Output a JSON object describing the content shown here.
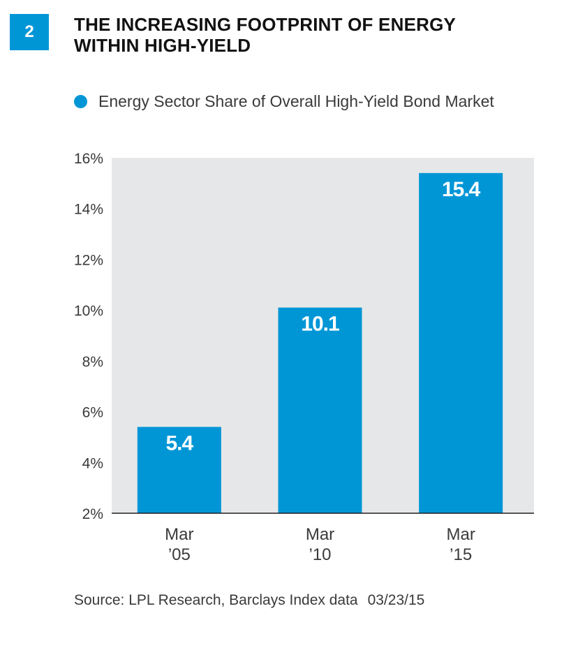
{
  "figure": {
    "number": "2",
    "title_lines": [
      "THE INCREASING FOOTPRINT OF ENERGY",
      "WITHIN HIGH-YIELD"
    ]
  },
  "source": {
    "text": "Source: LPL Research, Barclays Index data",
    "date": "03/23/15"
  },
  "colors": {
    "bar": "#0096d6",
    "plot_bg": "#e6e7e8",
    "axis": "#231f20"
  },
  "chart_data": {
    "type": "bar",
    "title": "",
    "legend": [
      {
        "name": "Energy Sector Share of Overall High-Yield Bond Market",
        "color": "#0096d6"
      }
    ],
    "categories": [
      [
        "Mar",
        "’05"
      ],
      [
        "Mar",
        "’10"
      ],
      [
        "Mar",
        "’15"
      ]
    ],
    "series": [
      {
        "name": "Energy Sector Share of Overall High-Yield Bond Market",
        "values": [
          5.4,
          10.1,
          15.4
        ]
      }
    ],
    "data_labels": [
      "5.4",
      "10.1",
      "15.4"
    ],
    "ylim": [
      2,
      16
    ],
    "yticks": [
      2,
      4,
      6,
      8,
      10,
      12,
      14,
      16
    ],
    "ytick_labels": [
      "2%",
      "4%",
      "6%",
      "8%",
      "10%",
      "12%",
      "14%",
      "16%"
    ],
    "xlabel": "",
    "ylabel": "",
    "grid": false,
    "legend_position": "top-left"
  }
}
